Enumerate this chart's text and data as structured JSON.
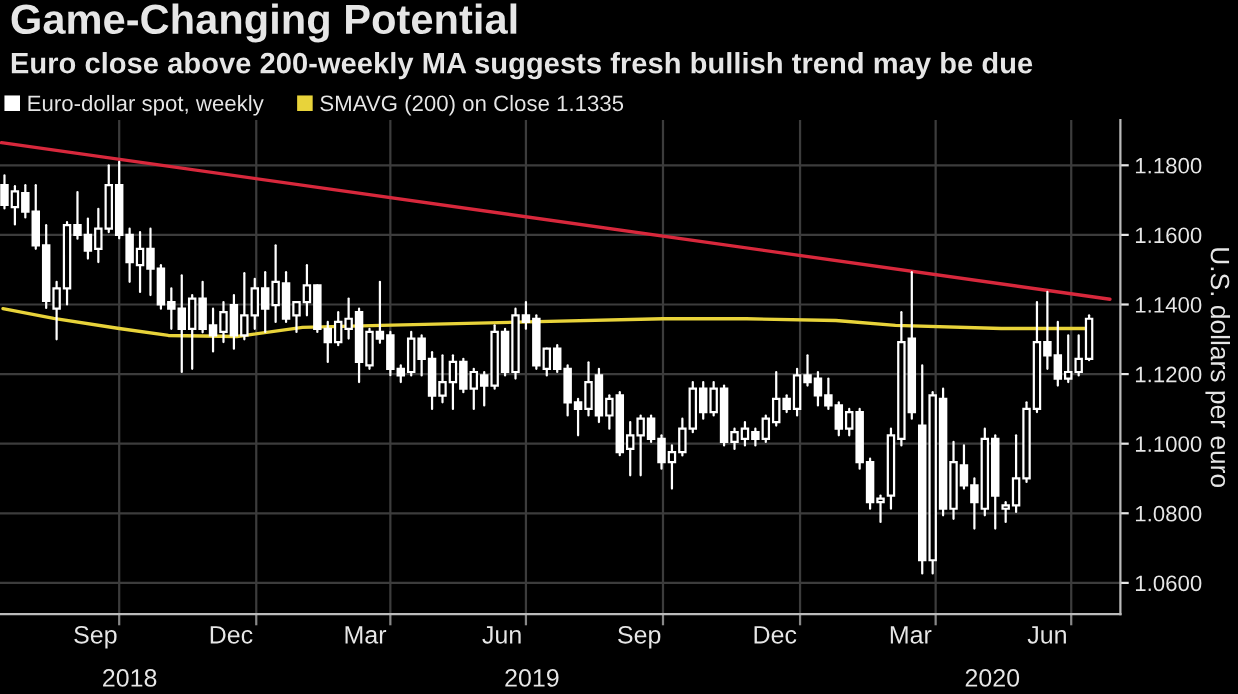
{
  "chart_data": {
    "type": "candlestick",
    "title": "Game-Changing Potential",
    "subtitle": "Euro close above 200-weekly MA suggests fresh bullish trend may be due",
    "ylabel": "U.S. dollars per euro",
    "series": [
      {
        "name": "Euro-dollar spot, weekly",
        "type": "candlestick",
        "color": "#ffffff",
        "x": [
          "2018-07-16",
          "2018-07-23",
          "2018-07-30",
          "2018-08-06",
          "2018-08-13",
          "2018-08-20",
          "2018-08-27",
          "2018-09-03",
          "2018-09-10",
          "2018-09-17",
          "2018-09-24",
          "2018-10-01",
          "2018-10-08",
          "2018-10-15",
          "2018-10-22",
          "2018-10-29",
          "2018-11-05",
          "2018-11-12",
          "2018-11-19",
          "2018-11-26",
          "2018-12-03",
          "2018-12-10",
          "2018-12-17",
          "2018-12-24",
          "2018-12-31",
          "2019-01-07",
          "2019-01-14",
          "2019-01-21",
          "2019-01-28",
          "2019-02-04",
          "2019-02-11",
          "2019-02-18",
          "2019-02-25",
          "2019-03-04",
          "2019-03-11",
          "2019-03-18",
          "2019-03-25",
          "2019-04-01",
          "2019-04-08",
          "2019-04-15",
          "2019-04-22",
          "2019-04-29",
          "2019-05-06",
          "2019-05-13",
          "2019-05-20",
          "2019-05-27",
          "2019-06-03",
          "2019-06-10",
          "2019-06-17",
          "2019-06-24",
          "2019-07-01",
          "2019-07-08",
          "2019-07-15",
          "2019-07-22",
          "2019-07-29",
          "2019-08-05",
          "2019-08-12",
          "2019-08-19",
          "2019-08-26",
          "2019-09-02",
          "2019-09-09",
          "2019-09-16",
          "2019-09-23",
          "2019-09-30",
          "2019-10-07",
          "2019-10-14",
          "2019-10-21",
          "2019-10-28",
          "2019-11-04",
          "2019-11-11",
          "2019-11-18",
          "2019-11-25",
          "2019-12-02",
          "2019-12-09",
          "2019-12-16",
          "2019-12-23",
          "2019-12-30",
          "2020-01-06",
          "2020-01-13",
          "2020-01-20",
          "2020-01-27",
          "2020-02-03",
          "2020-02-10",
          "2020-02-17",
          "2020-02-24",
          "2020-03-02",
          "2020-03-09",
          "2020-03-16",
          "2020-03-23",
          "2020-03-30",
          "2020-04-06",
          "2020-04-13",
          "2020-04-20",
          "2020-04-27",
          "2020-05-04",
          "2020-05-11",
          "2020-05-18",
          "2020-05-25",
          "2020-06-01",
          "2020-06-08",
          "2020-06-15",
          "2020-06-22",
          "2020-06-29",
          "2020-07-06",
          "2020-07-13"
        ],
        "ohlc": [
          [
            1.1743,
            1.1771,
            1.1676,
            1.1686
          ],
          [
            1.168,
            1.174,
            1.163,
            1.1725
          ],
          [
            1.172,
            1.1743,
            1.165,
            1.1667
          ],
          [
            1.1667,
            1.1743,
            1.156,
            1.157
          ],
          [
            1.157,
            1.1628,
            1.139,
            1.141
          ],
          [
            1.1388,
            1.1465,
            1.13,
            1.1446
          ],
          [
            1.1446,
            1.1637,
            1.14,
            1.1628
          ],
          [
            1.1628,
            1.1723,
            1.1589,
            1.16
          ],
          [
            1.16,
            1.1647,
            1.1532,
            1.1555
          ],
          [
            1.156,
            1.1675,
            1.1522,
            1.1618
          ],
          [
            1.1618,
            1.18,
            1.1608,
            1.1743
          ],
          [
            1.1743,
            1.181,
            1.159,
            1.16
          ],
          [
            1.16,
            1.1618,
            1.1465,
            1.1522
          ],
          [
            1.1513,
            1.1608,
            1.1436,
            1.156
          ],
          [
            1.156,
            1.1618,
            1.1427,
            1.1503
          ],
          [
            1.1503,
            1.1513,
            1.1388,
            1.14
          ],
          [
            1.1407,
            1.1446,
            1.133,
            1.1388
          ],
          [
            1.1388,
            1.1484,
            1.1206,
            1.133
          ],
          [
            1.133,
            1.1427,
            1.1215,
            1.1417
          ],
          [
            1.1417,
            1.1465,
            1.132,
            1.133
          ],
          [
            1.134,
            1.1388,
            1.1265,
            1.1311
          ],
          [
            1.1321,
            1.1407,
            1.1292,
            1.1378
          ],
          [
            1.1398,
            1.1427,
            1.1273,
            1.1311
          ],
          [
            1.1311,
            1.149,
            1.13,
            1.1369
          ],
          [
            1.1369,
            1.1474,
            1.133,
            1.1446
          ],
          [
            1.1446,
            1.1493,
            1.1321,
            1.1388
          ],
          [
            1.1398,
            1.157,
            1.135,
            1.1465
          ],
          [
            1.1461,
            1.1493,
            1.135,
            1.1359
          ],
          [
            1.1369,
            1.1407,
            1.1321,
            1.1407
          ],
          [
            1.1407,
            1.1513,
            1.1369,
            1.1455
          ],
          [
            1.1455,
            1.1455,
            1.1321,
            1.133
          ],
          [
            1.133,
            1.135,
            1.1235,
            1.1292
          ],
          [
            1.1292,
            1.1378,
            1.1283,
            1.135
          ],
          [
            1.133,
            1.1417,
            1.1302,
            1.1359
          ],
          [
            1.1378,
            1.1388,
            1.1177,
            1.1235
          ],
          [
            1.1225,
            1.133,
            1.1215,
            1.1321
          ],
          [
            1.1321,
            1.1465,
            1.129,
            1.1302
          ],
          [
            1.1311,
            1.1321,
            1.1197,
            1.1215
          ],
          [
            1.1215,
            1.1225,
            1.1177,
            1.1196
          ],
          [
            1.1206,
            1.1321,
            1.1196,
            1.1302
          ],
          [
            1.1302,
            1.1311,
            1.1196,
            1.1244
          ],
          [
            1.1244,
            1.1263,
            1.11,
            1.1138
          ],
          [
            1.1138,
            1.1254,
            1.1119,
            1.1177
          ],
          [
            1.1177,
            1.1254,
            1.11,
            1.1235
          ],
          [
            1.1235,
            1.1244,
            1.1148,
            1.1158
          ],
          [
            1.1158,
            1.1215,
            1.11,
            1.1206
          ],
          [
            1.1196,
            1.1206,
            1.111,
            1.1167
          ],
          [
            1.1167,
            1.134,
            1.1158,
            1.1321
          ],
          [
            1.1321,
            1.133,
            1.1196,
            1.1206
          ],
          [
            1.1206,
            1.1388,
            1.1187,
            1.1369
          ],
          [
            1.1369,
            1.1407,
            1.133,
            1.135
          ],
          [
            1.1359,
            1.1369,
            1.1215,
            1.1225
          ],
          [
            1.1215,
            1.1273,
            1.1196,
            1.1273
          ],
          [
            1.1273,
            1.1283,
            1.1206,
            1.1215
          ],
          [
            1.1215,
            1.1225,
            1.1081,
            1.1119
          ],
          [
            1.1119,
            1.1129,
            1.1024,
            1.11
          ],
          [
            1.11,
            1.1234,
            1.1081,
            1.1177
          ],
          [
            1.1196,
            1.1215,
            1.1062,
            1.1081
          ],
          [
            1.1081,
            1.1139,
            1.1043,
            1.1129
          ],
          [
            1.1139,
            1.1148,
            1.0967,
            1.0976
          ],
          [
            1.0985,
            1.1062,
            1.0909,
            1.1024
          ],
          [
            1.1024,
            1.1081,
            1.0909,
            1.1072
          ],
          [
            1.1072,
            1.1081,
            1.1005,
            1.1014
          ],
          [
            1.1014,
            1.1024,
            1.0928,
            1.0947
          ],
          [
            1.0947,
            1.0995,
            1.0871,
            1.0976
          ],
          [
            1.0976,
            1.1072,
            1.0966,
            1.1043
          ],
          [
            1.1043,
            1.1177,
            1.1033,
            1.1158
          ],
          [
            1.1158,
            1.1177,
            1.1072,
            1.1091
          ],
          [
            1.1091,
            1.1177,
            1.1081,
            1.1158
          ],
          [
            1.1158,
            1.1167,
            1.0995,
            1.1005
          ],
          [
            1.1005,
            1.1043,
            1.0985,
            1.1033
          ],
          [
            1.1014,
            1.1062,
            1.0995,
            1.1043
          ],
          [
            1.1033,
            1.1043,
            1.0995,
            1.1014
          ],
          [
            1.1014,
            1.1081,
            1.1005,
            1.1072
          ],
          [
            1.1062,
            1.1206,
            1.1052,
            1.1129
          ],
          [
            1.1129,
            1.1139,
            1.1091,
            1.11
          ],
          [
            1.11,
            1.1215,
            1.1081,
            1.1196
          ],
          [
            1.1196,
            1.1254,
            1.1167,
            1.1177
          ],
          [
            1.1187,
            1.1206,
            1.111,
            1.1139
          ],
          [
            1.1139,
            1.1187,
            1.11,
            1.111
          ],
          [
            1.111,
            1.1119,
            1.1024,
            1.1043
          ],
          [
            1.1043,
            1.11,
            1.1024,
            1.1091
          ],
          [
            1.1091,
            1.11,
            1.0928,
            1.0947
          ],
          [
            1.0947,
            1.0957,
            1.0813,
            1.0832
          ],
          [
            1.0832,
            1.0851,
            1.0775,
            1.0842
          ],
          [
            1.0851,
            1.1043,
            1.0813,
            1.1024
          ],
          [
            1.1014,
            1.1378,
            1.0995,
            1.1292
          ],
          [
            1.1302,
            1.1493,
            1.1072,
            1.1091
          ],
          [
            1.1052,
            1.1225,
            1.0627,
            1.0665
          ],
          [
            1.0665,
            1.1148,
            1.0627,
            1.1139
          ],
          [
            1.1129,
            1.1158,
            1.0794,
            1.0813
          ],
          [
            1.0813,
            1.1005,
            1.0784,
            1.0947
          ],
          [
            1.0938,
            1.0995,
            1.0871,
            1.088
          ],
          [
            1.088,
            1.09,
            1.0756,
            1.0832
          ],
          [
            1.0813,
            1.1043,
            1.0794,
            1.1014
          ],
          [
            1.1014,
            1.1024,
            1.0756,
            1.0851
          ],
          [
            1.0813,
            1.0832,
            1.0775,
            1.0823
          ],
          [
            1.0823,
            1.1024,
            1.0804,
            1.09
          ],
          [
            1.09,
            1.1119,
            1.089,
            1.11
          ],
          [
            1.11,
            1.1407,
            1.1091,
            1.1292
          ],
          [
            1.1292,
            1.1436,
            1.1215,
            1.1254
          ],
          [
            1.1254,
            1.135,
            1.1167,
            1.1187
          ],
          [
            1.1187,
            1.1311,
            1.1177,
            1.1206
          ],
          [
            1.1206,
            1.1311,
            1.1196,
            1.1244
          ],
          [
            1.1244,
            1.1369,
            1.124,
            1.1359
          ]
        ]
      },
      {
        "name": "SMAVG (200) on Close 1.1335",
        "type": "line",
        "color": "#e8d33a",
        "x": [
          "2018-07-15",
          "2018-08-18",
          "2018-10-01",
          "2018-11-03",
          "2018-12-19",
          "2019-02-01",
          "2019-03-26",
          "2019-07-02",
          "2019-10-01",
          "2019-11-26",
          "2020-01-25",
          "2020-03-05",
          "2020-05-15",
          "2020-07-13"
        ],
        "values": [
          1.1388,
          1.136,
          1.1331,
          1.1311,
          1.1308,
          1.1334,
          1.134,
          1.135,
          1.1359,
          1.1359,
          1.1354,
          1.134,
          1.1331,
          1.1331
        ]
      },
      {
        "type": "line",
        "color": "#d8283c",
        "x": [
          "2018-07-14",
          "2020-07-27"
        ],
        "values": [
          1.1865,
          1.1415
        ]
      }
    ],
    "xlim": [
      "2018-07-13",
      "2020-08-03"
    ],
    "xticks": [
      {
        "value": "2018-10-01",
        "label": null
      },
      {
        "value": "2019-01-01",
        "label": null
      },
      {
        "value": "2019-04-01",
        "label": null
      },
      {
        "value": "2019-07-01",
        "label": null
      },
      {
        "value": "2019-10-01",
        "label": null
      },
      {
        "value": "2020-01-01",
        "label": null
      },
      {
        "value": "2020-04-01",
        "label": null
      },
      {
        "value": "2020-07-01",
        "label": null
      },
      {
        "value": "2018-09-15",
        "label": "Sep"
      },
      {
        "value": "2018-12-15",
        "label": "Dec"
      },
      {
        "value": "2019-03-15",
        "label": "Mar"
      },
      {
        "value": "2019-06-15",
        "label": "Jun"
      },
      {
        "value": "2019-09-15",
        "label": "Sep"
      },
      {
        "value": "2019-12-15",
        "label": "Dec"
      },
      {
        "value": "2020-03-15",
        "label": "Mar"
      },
      {
        "value": "2020-06-15",
        "label": "Jun"
      }
    ],
    "x2lim": [
      "2018-07-13",
      "2020-08-03"
    ],
    "x2ticks": [
      {
        "value": "2018-10-08",
        "label": "2018"
      },
      {
        "value": "2019-07-05",
        "label": "2019"
      },
      {
        "value": "2020-05-09",
        "label": "2020"
      }
    ],
    "ylim": [
      1.051,
      1.193
    ],
    "yticks": [
      {
        "value": 1.06,
        "label": "1.0600"
      },
      {
        "value": 1.08,
        "label": "1.0800"
      },
      {
        "value": 1.1,
        "label": "1.1000"
      },
      {
        "value": 1.12,
        "label": "1.1200"
      },
      {
        "value": 1.14,
        "label": "1.1400"
      },
      {
        "value": 1.16,
        "label": "1.1600"
      },
      {
        "value": 1.18,
        "label": "1.1800"
      }
    ],
    "grid": true,
    "legend": "top left"
  }
}
